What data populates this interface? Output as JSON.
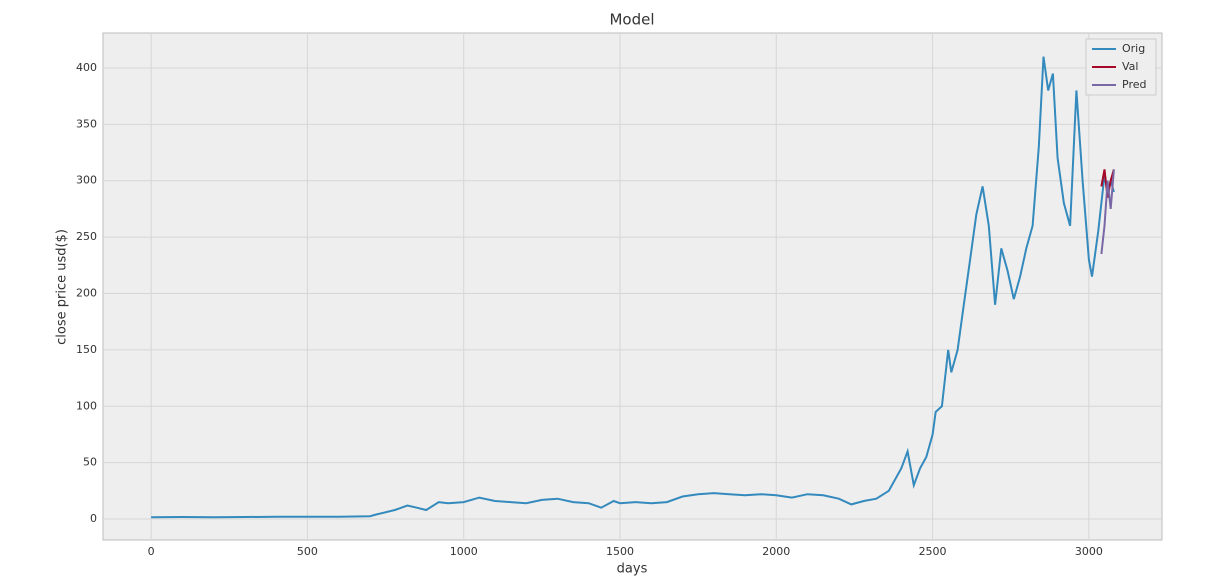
{
  "chart_data": {
    "type": "line",
    "title": "Model",
    "x_label": "days",
    "y_label": "close price usd($)",
    "xlim": [
      -154,
      3234
    ],
    "ylim": [
      -18.6,
      431
    ],
    "xticks": [
      0,
      500,
      1000,
      1500,
      2000,
      2500,
      3000
    ],
    "yticks": [
      0,
      50,
      100,
      150,
      200,
      250,
      300,
      350,
      400
    ],
    "grid": true,
    "legend": "upper right",
    "series": [
      {
        "name": "Orig",
        "color": "#348abd",
        "x": [
          0,
          100,
          200,
          300,
          400,
          500,
          600,
          700,
          720,
          780,
          820,
          850,
          880,
          920,
          950,
          1000,
          1050,
          1100,
          1150,
          1200,
          1250,
          1300,
          1350,
          1400,
          1440,
          1480,
          1500,
          1550,
          1600,
          1650,
          1700,
          1750,
          1800,
          1850,
          1900,
          1950,
          2000,
          2050,
          2100,
          2150,
          2200,
          2240,
          2280,
          2320,
          2360,
          2400,
          2420,
          2440,
          2460,
          2480,
          2500,
          2510,
          2530,
          2550,
          2560,
          2580,
          2600,
          2620,
          2640,
          2660,
          2680,
          2700,
          2720,
          2740,
          2760,
          2780,
          2800,
          2820,
          2840,
          2855,
          2870,
          2885,
          2900,
          2920,
          2940,
          2960,
          2980,
          3000,
          3010,
          3030,
          3050,
          3060,
          3070,
          3080
        ],
        "values": [
          1.5,
          1.8,
          1.5,
          1.8,
          2,
          2,
          2,
          2.5,
          4,
          8,
          12,
          10,
          8,
          15,
          14,
          15,
          19,
          16,
          15,
          14,
          17,
          18,
          15,
          14,
          10,
          16,
          14,
          15,
          14,
          15,
          20,
          22,
          23,
          22,
          21,
          22,
          21,
          19,
          22,
          21,
          18,
          13,
          16,
          18,
          25,
          45,
          60,
          30,
          45,
          55,
          75,
          95,
          100,
          150,
          130,
          150,
          190,
          230,
          270,
          295,
          260,
          190,
          240,
          220,
          195,
          215,
          240,
          260,
          330,
          410,
          380,
          395,
          320,
          280,
          260,
          380,
          300,
          230,
          215,
          255,
          305,
          290,
          300,
          290
        ]
      },
      {
        "name": "Val",
        "color": "#a60628",
        "x": [
          3040,
          3050,
          3060,
          3070,
          3080
        ],
        "values": [
          295,
          310,
          285,
          300,
          310
        ]
      },
      {
        "name": "Pred",
        "color": "#7a68a6",
        "x": [
          3040,
          3050,
          3060,
          3070,
          3080
        ],
        "values": [
          235,
          260,
          300,
          275,
          310
        ]
      }
    ]
  }
}
